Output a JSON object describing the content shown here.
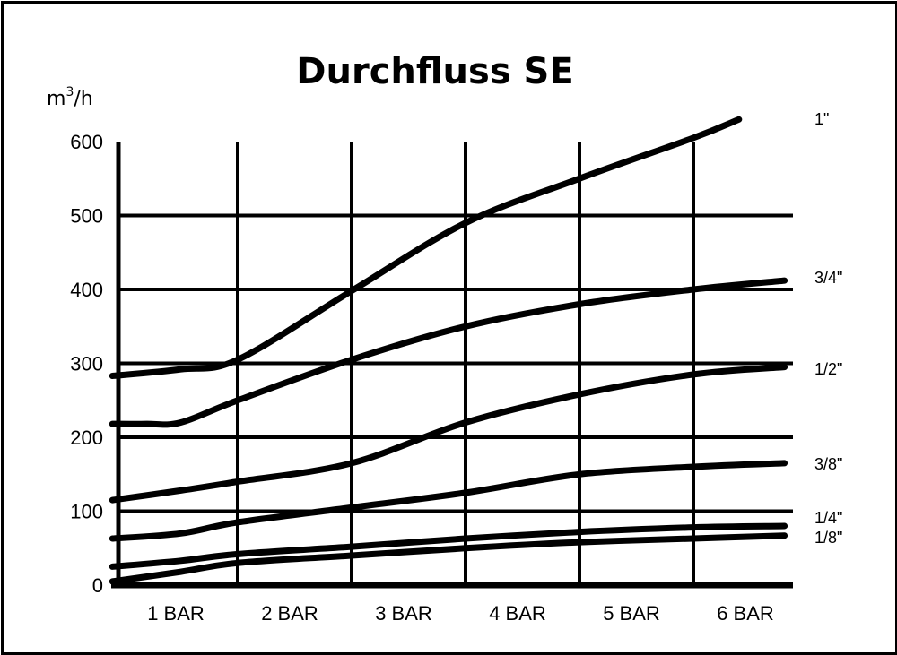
{
  "chart_data": {
    "type": "line",
    "title": "Durchfluss  SE",
    "ylabel": "m",
    "ylabel_sup": "3",
    "ylabel_suffix": "/h",
    "xlabel": "",
    "categories": [
      "1 BAR",
      "2 BAR",
      "3 BAR",
      "4 BAR",
      "5 BAR",
      "6 BAR"
    ],
    "x_range": [
      0.7,
      6.8
    ],
    "ylim": [
      0,
      600
    ],
    "yticks": [
      0,
      100,
      200,
      300,
      400,
      500,
      600
    ],
    "grid": true,
    "legend": "right",
    "line_color": "#000000",
    "series": [
      {
        "name": "1\"",
        "points": [
          [
            0.9,
            283
          ],
          [
            1.5,
            292
          ],
          [
            2.0,
            305
          ],
          [
            3.0,
            398
          ],
          [
            4.0,
            490
          ],
          [
            5.0,
            550
          ],
          [
            6.0,
            605
          ],
          [
            6.4,
            630
          ]
        ]
      },
      {
        "name": "3/4\"",
        "points": [
          [
            0.9,
            218
          ],
          [
            1.2,
            218
          ],
          [
            1.5,
            220
          ],
          [
            2.0,
            250
          ],
          [
            3.0,
            305
          ],
          [
            4.0,
            350
          ],
          [
            5.0,
            380
          ],
          [
            6.0,
            400
          ],
          [
            6.8,
            412
          ]
        ]
      },
      {
        "name": "1/2\"",
        "points": [
          [
            0.9,
            115
          ],
          [
            1.5,
            128
          ],
          [
            2.0,
            140
          ],
          [
            3.0,
            165
          ],
          [
            4.0,
            220
          ],
          [
            5.0,
            258
          ],
          [
            6.0,
            285
          ],
          [
            6.8,
            295
          ]
        ]
      },
      {
        "name": "3/8\"",
        "points": [
          [
            0.9,
            63
          ],
          [
            1.5,
            70
          ],
          [
            2.0,
            85
          ],
          [
            3.0,
            105
          ],
          [
            4.0,
            125
          ],
          [
            5.0,
            150
          ],
          [
            6.0,
            160
          ],
          [
            6.8,
            165
          ]
        ]
      },
      {
        "name": "1/4\"",
        "points": [
          [
            0.9,
            25
          ],
          [
            1.5,
            33
          ],
          [
            2.0,
            42
          ],
          [
            3.0,
            52
          ],
          [
            4.0,
            63
          ],
          [
            5.0,
            72
          ],
          [
            6.0,
            78
          ],
          [
            6.8,
            80
          ]
        ]
      },
      {
        "name": "1/8\"",
        "points": [
          [
            0.9,
            5
          ],
          [
            1.5,
            18
          ],
          [
            2.0,
            30
          ],
          [
            3.0,
            40
          ],
          [
            4.0,
            50
          ],
          [
            5.0,
            58
          ],
          [
            6.0,
            63
          ],
          [
            6.8,
            67
          ]
        ]
      }
    ]
  }
}
